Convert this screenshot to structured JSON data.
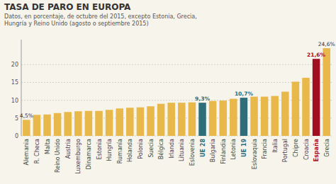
{
  "chart_data": {
    "type": "bar",
    "title": "TASA DE PARO EN EUROPA",
    "subtitle": "Datos, en porcentaje, de octubre del 2015, excepto Estonia, Grecia,\nHungría y Reino Unido (agosto o septiembre 2015)",
    "categories": [
      "Alemania",
      "R. Checa",
      "Malta",
      "Reino Unido",
      "Austria",
      "Luxemburgo",
      "Dinamarca",
      "Estonia",
      "Hungría",
      "Rumanía",
      "Holanda",
      "Polonia",
      "Suecia",
      "Bélgica",
      "Irlanda",
      "Lituania",
      "Eslovenia",
      "UE 28",
      "Bulgaria",
      "Finlandia",
      "Letonia",
      "UE 19",
      "Eslovaquia",
      "Francia",
      "Italia",
      "Portugal",
      "Chipre",
      "Croacia",
      "España",
      "Grecia"
    ],
    "values": [
      4.5,
      5.9,
      6.0,
      6.4,
      6.7,
      6.9,
      7.0,
      7.0,
      7.3,
      7.7,
      7.9,
      8.0,
      8.3,
      9.0,
      9.3,
      9.3,
      9.4,
      9.3,
      9.8,
      9.9,
      10.4,
      10.7,
      11.0,
      11.0,
      11.2,
      12.4,
      15.2,
      16.3,
      21.6,
      24.6
    ],
    "value_labels": [
      "4,5%",
      null,
      null,
      null,
      null,
      null,
      null,
      null,
      null,
      null,
      null,
      null,
      null,
      null,
      null,
      null,
      null,
      "9,3%",
      null,
      null,
      null,
      "10,7%",
      null,
      null,
      null,
      null,
      null,
      null,
      "21,6%",
      "24,6%"
    ],
    "colors": [
      "#E8B84B",
      "#E8B84B",
      "#E8B84B",
      "#E8B84B",
      "#E8B84B",
      "#E8B84B",
      "#E8B84B",
      "#E8B84B",
      "#E8B84B",
      "#E8B84B",
      "#E8B84B",
      "#E8B84B",
      "#E8B84B",
      "#E8B84B",
      "#E8B84B",
      "#E8B84B",
      "#E8B84B",
      "#2E6E7A",
      "#E8B84B",
      "#E8B84B",
      "#E8B84B",
      "#2E6E7A",
      "#E8B84B",
      "#E8B84B",
      "#E8B84B",
      "#E8B84B",
      "#E8B84B",
      "#E8B84B",
      "#A01020",
      "#E8B84B"
    ],
    "ylim": [
      0,
      27
    ],
    "yticks": [
      0,
      5,
      10,
      15,
      20
    ],
    "grid": true
  }
}
